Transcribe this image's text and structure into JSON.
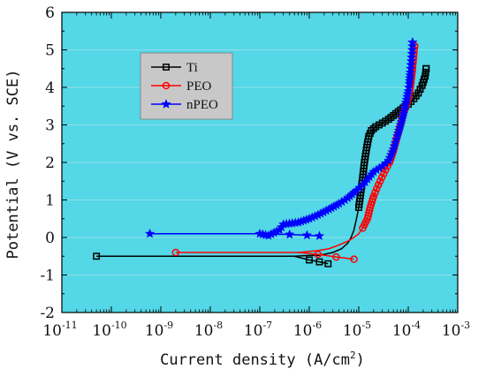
{
  "chart_data": {
    "type": "line",
    "xlabel": "Current density (A/cm²)",
    "xlabel_base": "Current density (A/cm",
    "xlabel_exp": "2",
    "xlabel_close": ")",
    "ylabel": "Potential (V vs. SCE)",
    "x_scale": "log",
    "xlim": [
      1e-11,
      0.001
    ],
    "ylim": [
      -2,
      6
    ],
    "x_ticks": [
      {
        "value": 1e-11,
        "base": "10",
        "exp": "-11"
      },
      {
        "value": 1e-10,
        "base": "10",
        "exp": "-10"
      },
      {
        "value": 1e-09,
        "base": "10",
        "exp": "-9"
      },
      {
        "value": 1e-08,
        "base": "10",
        "exp": "-8"
      },
      {
        "value": 1e-07,
        "base": "10",
        "exp": "-7"
      },
      {
        "value": 1e-06,
        "base": "10",
        "exp": "-6"
      },
      {
        "value": 1e-05,
        "base": "10",
        "exp": "-5"
      },
      {
        "value": 0.0001,
        "base": "10",
        "exp": "-4"
      },
      {
        "value": 0.001,
        "base": "10",
        "exp": "-3"
      }
    ],
    "y_ticks": [
      "-2",
      "-1",
      "0",
      "1",
      "2",
      "3",
      "4",
      "5",
      "6"
    ],
    "grid": "horizontal",
    "plot_background": "#54d7e6",
    "legend_position": "top-left",
    "legend_background": "#c8c8c8",
    "series": [
      {
        "name": "Ti",
        "color": "#000000",
        "marker": "square",
        "points": [
          [
            5e-11,
            -0.5
          ],
          [
            5e-07,
            -0.5
          ],
          [
            1e-06,
            -0.48
          ],
          [
            1.5e-06,
            -0.48
          ],
          [
            2e-06,
            -0.45
          ],
          [
            3e-06,
            -0.4
          ],
          [
            4.5e-06,
            -0.3
          ],
          [
            6e-06,
            -0.15
          ],
          [
            7e-06,
            0.0
          ],
          [
            8e-06,
            0.2
          ],
          [
            9e-06,
            0.5
          ],
          [
            1e-05,
            0.8
          ],
          [
            1.1e-05,
            1.2
          ],
          [
            1.2e-05,
            1.6
          ],
          [
            1.3e-05,
            2.0
          ],
          [
            1.45e-05,
            2.4
          ],
          [
            1.6e-05,
            2.7
          ],
          [
            1.8e-05,
            2.85
          ],
          [
            2.2e-05,
            2.95
          ],
          [
            3e-05,
            3.05
          ],
          [
            4e-05,
            3.15
          ],
          [
            5e-05,
            3.25
          ],
          [
            7e-05,
            3.4
          ],
          [
            0.0001,
            3.55
          ],
          [
            0.00013,
            3.7
          ],
          [
            0.00016,
            3.85
          ],
          [
            0.00019,
            4.05
          ],
          [
            0.00022,
            4.3
          ],
          [
            0.00023,
            4.5
          ]
        ],
        "branch": [
          [
            5e-07,
            -0.5
          ],
          [
            1e-06,
            -0.6
          ],
          [
            1.6e-06,
            -0.65
          ],
          [
            2.4e-06,
            -0.7
          ]
        ]
      },
      {
        "name": "PEO",
        "color": "#ff0000",
        "marker": "circle",
        "points": [
          [
            2e-09,
            -0.4
          ],
          [
            6e-07,
            -0.4
          ],
          [
            1.5e-06,
            -0.35
          ],
          [
            2.5e-06,
            -0.3
          ],
          [
            4e-06,
            -0.2
          ],
          [
            6e-06,
            -0.1
          ],
          [
            8e-06,
            0.0
          ],
          [
            1e-05,
            0.1
          ],
          [
            1.2e-05,
            0.25
          ],
          [
            1.5e-05,
            0.5
          ],
          [
            1.7e-05,
            0.8
          ],
          [
            2e-05,
            1.1
          ],
          [
            2.3e-05,
            1.3
          ],
          [
            2.7e-05,
            1.5
          ],
          [
            3.2e-05,
            1.7
          ],
          [
            3.8e-05,
            1.9
          ],
          [
            4.2e-05,
            2.0
          ],
          [
            5e-05,
            2.3
          ],
          [
            6e-05,
            2.7
          ],
          [
            7e-05,
            3.0
          ],
          [
            8e-05,
            3.3
          ],
          [
            9e-05,
            3.5
          ],
          [
            0.0001,
            3.7
          ],
          [
            0.00011,
            4.0
          ],
          [
            0.00012,
            4.4
          ],
          [
            0.00013,
            4.9
          ],
          [
            0.000135,
            5.1
          ]
        ],
        "branch": [
          [
            6e-07,
            -0.4
          ],
          [
            1.5e-06,
            -0.45
          ],
          [
            3.5e-06,
            -0.52
          ],
          [
            8e-06,
            -0.58
          ]
        ]
      },
      {
        "name": "nPEO",
        "color": "#0000ff",
        "marker": "star",
        "points": [
          [
            6e-10,
            0.1
          ],
          [
            1e-07,
            0.1
          ],
          [
            1.5e-07,
            0.05
          ],
          [
            2.5e-07,
            0.2
          ],
          [
            3e-07,
            0.35
          ],
          [
            6e-07,
            0.4
          ],
          [
            1e-06,
            0.5
          ],
          [
            1.5e-06,
            0.6
          ],
          [
            2.5e-06,
            0.75
          ],
          [
            4e-06,
            0.9
          ],
          [
            6e-06,
            1.05
          ],
          [
            9e-06,
            1.25
          ],
          [
            1.2e-05,
            1.4
          ],
          [
            1.5e-05,
            1.55
          ],
          [
            2e-05,
            1.75
          ],
          [
            3e-05,
            1.9
          ],
          [
            4e-05,
            2.05
          ],
          [
            5e-05,
            2.35
          ],
          [
            6e-05,
            2.7
          ],
          [
            7e-05,
            3.0
          ],
          [
            8e-05,
            3.3
          ],
          [
            9e-05,
            3.6
          ],
          [
            0.0001,
            3.9
          ],
          [
            0.000105,
            4.1
          ],
          [
            0.00011,
            4.4
          ],
          [
            0.000115,
            4.7
          ],
          [
            0.00012,
            5.0
          ],
          [
            0.000122,
            5.2
          ]
        ],
        "branch": [
          [
            1e-07,
            0.1
          ],
          [
            4e-07,
            0.08
          ],
          [
            9e-07,
            0.06
          ],
          [
            1.6e-06,
            0.04
          ]
        ]
      }
    ]
  }
}
